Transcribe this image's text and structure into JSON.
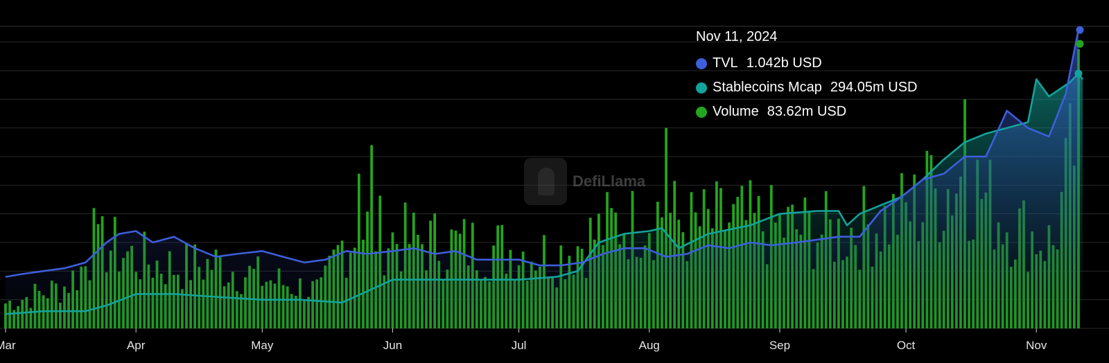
{
  "watermark": {
    "text": "DefiLlama",
    "icon": "llama-logo-icon"
  },
  "tooltip": {
    "date": "Nov 11, 2024",
    "items": [
      {
        "name": "TVL",
        "value": "1.042b USD",
        "color": "#3d5fdb"
      },
      {
        "name": "Stablecoins Mcap",
        "value": "294.05m USD",
        "color": "#14a39a"
      },
      {
        "name": "Volume",
        "value": "83.62m USD",
        "color": "#23a51d"
      }
    ]
  },
  "chart_data": {
    "type": "bar+line",
    "title": "",
    "x_axis": {
      "ticks": [
        "Mar",
        "Apr",
        "May",
        "Jun",
        "Jul",
        "Aug",
        "Sep",
        "Oct",
        "Nov"
      ]
    },
    "x_range": [
      "2024-03-01",
      "2024-11-12"
    ],
    "grid": "horizontal",
    "series": [
      {
        "name": "TVL",
        "kind": "line-area",
        "color": "#3d5fdb",
        "unit": "USD",
        "points": [
          [
            "2024-03-01",
            0.18
          ],
          [
            "2024-03-05",
            0.19
          ],
          [
            "2024-03-10",
            0.2
          ],
          [
            "2024-03-15",
            0.21
          ],
          [
            "2024-03-20",
            0.23
          ],
          [
            "2024-03-25",
            0.3
          ],
          [
            "2024-03-28",
            0.33
          ],
          [
            "2024-04-01",
            0.34
          ],
          [
            "2024-04-05",
            0.3
          ],
          [
            "2024-04-10",
            0.32
          ],
          [
            "2024-04-15",
            0.28
          ],
          [
            "2024-04-20",
            0.25
          ],
          [
            "2024-04-25",
            0.26
          ],
          [
            "2024-05-01",
            0.27
          ],
          [
            "2024-05-06",
            0.25
          ],
          [
            "2024-05-11",
            0.23
          ],
          [
            "2024-05-16",
            0.24
          ],
          [
            "2024-05-21",
            0.27
          ],
          [
            "2024-05-26",
            0.26
          ],
          [
            "2024-06-01",
            0.27
          ],
          [
            "2024-06-06",
            0.28
          ],
          [
            "2024-06-11",
            0.26
          ],
          [
            "2024-06-16",
            0.27
          ],
          [
            "2024-06-21",
            0.24
          ],
          [
            "2024-06-26",
            0.24
          ],
          [
            "2024-07-01",
            0.24
          ],
          [
            "2024-07-06",
            0.22
          ],
          [
            "2024-07-11",
            0.22
          ],
          [
            "2024-07-16",
            0.23
          ],
          [
            "2024-07-21",
            0.26
          ],
          [
            "2024-07-26",
            0.28
          ],
          [
            "2024-07-31",
            0.28
          ],
          [
            "2024-08-05",
            0.25
          ],
          [
            "2024-08-10",
            0.26
          ],
          [
            "2024-08-15",
            0.29
          ],
          [
            "2024-08-20",
            0.28
          ],
          [
            "2024-08-25",
            0.3
          ],
          [
            "2024-08-30",
            0.29
          ],
          [
            "2024-09-05",
            0.3
          ],
          [
            "2024-09-10",
            0.31
          ],
          [
            "2024-09-15",
            0.32
          ],
          [
            "2024-09-20",
            0.32
          ],
          [
            "2024-09-25",
            0.41
          ],
          [
            "2024-09-30",
            0.46
          ],
          [
            "2024-10-05",
            0.52
          ],
          [
            "2024-10-10",
            0.54
          ],
          [
            "2024-10-15",
            0.6
          ],
          [
            "2024-10-20",
            0.6
          ],
          [
            "2024-10-25",
            0.76
          ],
          [
            "2024-10-30",
            0.7
          ],
          [
            "2024-11-04",
            0.67
          ],
          [
            "2024-11-08",
            0.82
          ],
          [
            "2024-11-11",
            1.042
          ]
        ]
      },
      {
        "name": "Stablecoins Mcap",
        "kind": "line-area",
        "color": "#14a39a",
        "unit": "USD",
        "points": [
          [
            "2024-03-01",
            0.05
          ],
          [
            "2024-03-10",
            0.06
          ],
          [
            "2024-03-20",
            0.06
          ],
          [
            "2024-03-25",
            0.08
          ],
          [
            "2024-04-01",
            0.12
          ],
          [
            "2024-04-10",
            0.12
          ],
          [
            "2024-04-20",
            0.11
          ],
          [
            "2024-05-01",
            0.1
          ],
          [
            "2024-05-10",
            0.1
          ],
          [
            "2024-05-20",
            0.09
          ],
          [
            "2024-05-26",
            0.13
          ],
          [
            "2024-06-01",
            0.17
          ],
          [
            "2024-06-10",
            0.17
          ],
          [
            "2024-06-20",
            0.17
          ],
          [
            "2024-07-01",
            0.17
          ],
          [
            "2024-07-10",
            0.18
          ],
          [
            "2024-07-15",
            0.2
          ],
          [
            "2024-07-20",
            0.3
          ],
          [
            "2024-07-26",
            0.33
          ],
          [
            "2024-08-01",
            0.34
          ],
          [
            "2024-08-04",
            0.35
          ],
          [
            "2024-08-08",
            0.28
          ],
          [
            "2024-08-15",
            0.33
          ],
          [
            "2024-08-25",
            0.36
          ],
          [
            "2024-09-01",
            0.4
          ],
          [
            "2024-09-10",
            0.41
          ],
          [
            "2024-09-15",
            0.41
          ],
          [
            "2024-09-17",
            0.36
          ],
          [
            "2024-09-20",
            0.4
          ],
          [
            "2024-09-30",
            0.46
          ],
          [
            "2024-10-05",
            0.52
          ],
          [
            "2024-10-10",
            0.59
          ],
          [
            "2024-10-15",
            0.65
          ],
          [
            "2024-10-20",
            0.68
          ],
          [
            "2024-10-25",
            0.7
          ],
          [
            "2024-10-30",
            0.72
          ],
          [
            "2024-11-01",
            0.87
          ],
          [
            "2024-11-04",
            0.81
          ],
          [
            "2024-11-09",
            0.86
          ],
          [
            "2024-11-11",
            0.89
          ],
          [
            "2024-11-12",
            0.87
          ]
        ]
      },
      {
        "name": "Volume",
        "kind": "bar",
        "color": "#23a51d",
        "unit": "USD",
        "anchors": [
          [
            "2024-03-01",
            0.09
          ],
          [
            "2024-03-15",
            0.15
          ],
          [
            "2024-03-25",
            0.3
          ],
          [
            "2024-04-01",
            0.25
          ],
          [
            "2024-04-10",
            0.22
          ],
          [
            "2024-04-20",
            0.23
          ],
          [
            "2024-05-01",
            0.18
          ],
          [
            "2024-05-15",
            0.13
          ],
          [
            "2024-05-20",
            0.3
          ],
          [
            "2024-05-26",
            0.36
          ],
          [
            "2024-06-01",
            0.32
          ],
          [
            "2024-06-15",
            0.3
          ],
          [
            "2024-07-01",
            0.28
          ],
          [
            "2024-07-10",
            0.26
          ],
          [
            "2024-07-20",
            0.34
          ],
          [
            "2024-07-28",
            0.4
          ],
          [
            "2024-08-04",
            0.42
          ],
          [
            "2024-08-10",
            0.36
          ],
          [
            "2024-08-20",
            0.38
          ],
          [
            "2024-09-01",
            0.36
          ],
          [
            "2024-09-15",
            0.34
          ],
          [
            "2024-09-25",
            0.38
          ],
          [
            "2024-10-05",
            0.44
          ],
          [
            "2024-10-15",
            0.55
          ],
          [
            "2024-10-25",
            0.38
          ],
          [
            "2024-11-05",
            0.3
          ],
          [
            "2024-11-11",
            0.72
          ]
        ],
        "spikes": [
          [
            "2024-05-24",
            0.54
          ],
          [
            "2024-05-27",
            0.64
          ],
          [
            "2024-08-05",
            0.7
          ],
          [
            "2024-10-06",
            0.62
          ],
          [
            "2024-10-15",
            0.8
          ],
          [
            "2024-07-28",
            0.48
          ],
          [
            "2024-03-22",
            0.42
          ]
        ]
      }
    ],
    "y_range": [
      0,
      1.05
    ],
    "highlighted_x": "2024-11-11"
  }
}
